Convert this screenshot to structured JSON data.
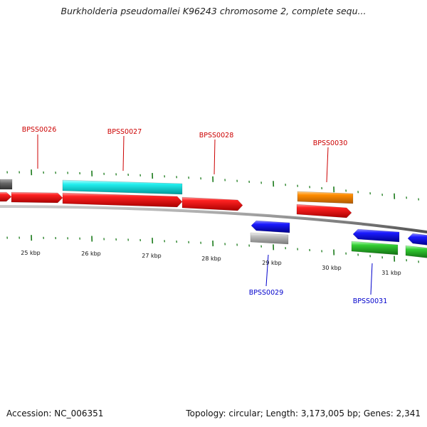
{
  "title": "Burkholderia pseudomallei K96243 chromosome 2, complete sequ...",
  "footer": {
    "accession": "Accession: NC_006351",
    "summary": "Topology: circular; Length: 3,173,005 bp; Genes: 2,341"
  },
  "scale_labels": [
    "25 kbp",
    "26 kbp",
    "27 kbp",
    "28 kbp",
    "29 kbp",
    "30 kbp",
    "31 kbp"
  ],
  "gene_labels_top": [
    "BPSS0026",
    "BPSS0027",
    "BPSS0028",
    "BPSS0030"
  ],
  "gene_labels_bottom": [
    "BPSS0029",
    "BPSS0031"
  ],
  "colors": {
    "forward_label": "#cc0000",
    "reverse_label": "#0000cc",
    "backbone": "#808080",
    "tick": "#1a7a1a",
    "red": "#ee1111",
    "cyan": "#11eeee",
    "orange": "#ff8c00",
    "blue": "#1111ee",
    "green": "#33cc33",
    "gray": "#bbbbbb",
    "dark_gray": "#666666"
  }
}
